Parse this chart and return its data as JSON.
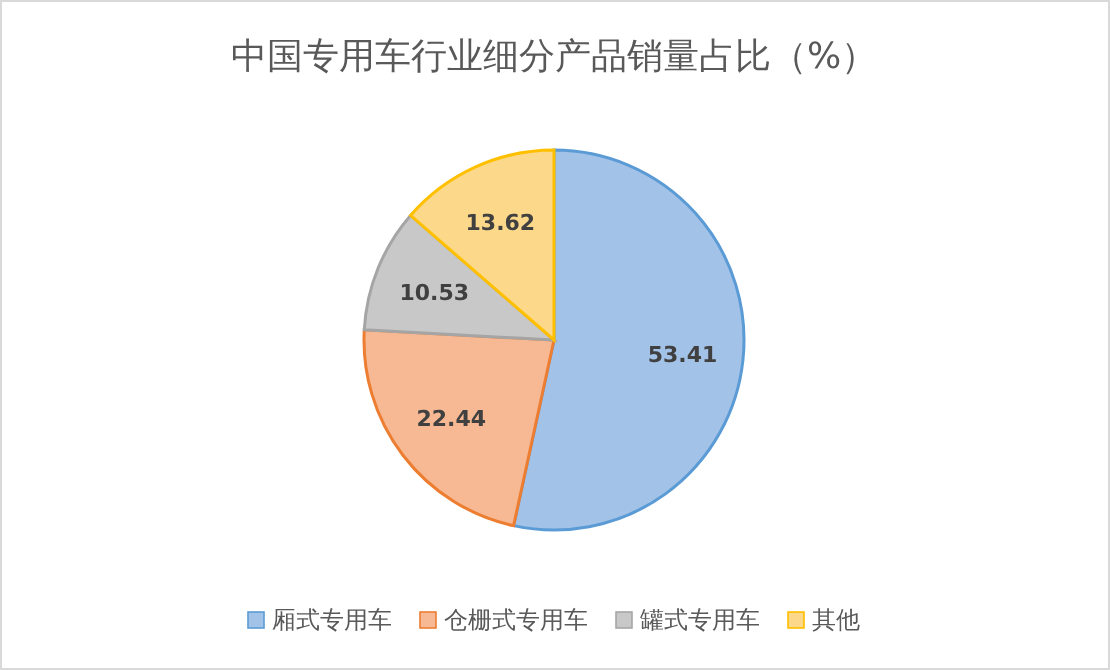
{
  "chart_data": {
    "type": "pie",
    "title": "中国专用车行业细分产品销量占比（%）",
    "categories": [
      "厢式专用车",
      "仓栅式专用车",
      "罐式专用车",
      "其他"
    ],
    "values": [
      53.41,
      22.44,
      10.53,
      13.62
    ],
    "colors": [
      "#a3c2e8",
      "#f7b994",
      "#c8c8c8",
      "#fcd88a"
    ],
    "data_labels": true,
    "legend": "bottom"
  }
}
